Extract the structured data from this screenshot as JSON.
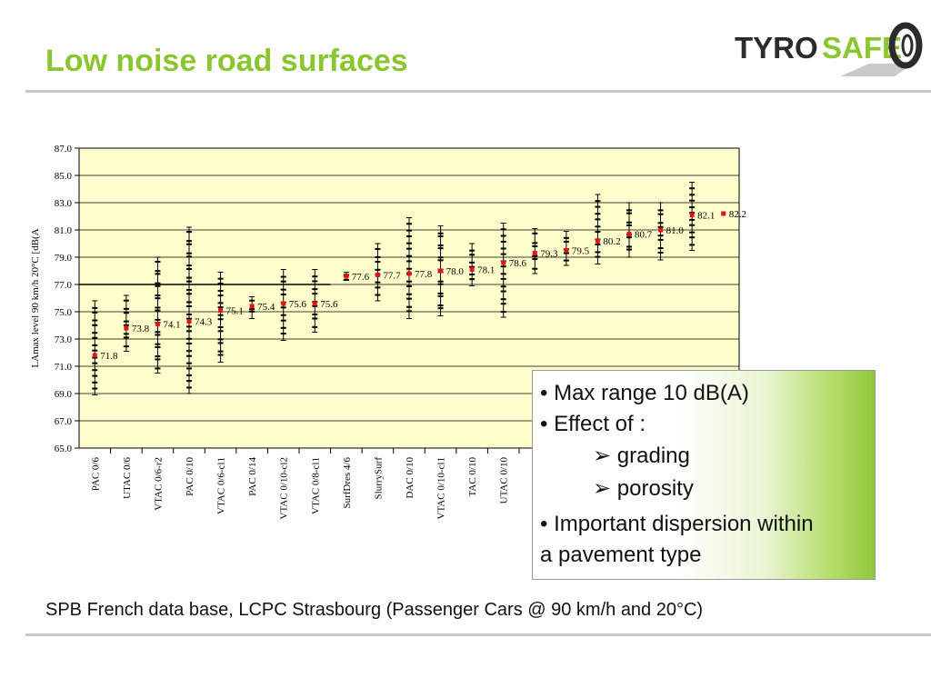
{
  "slide": {
    "title": "Low noise road surfaces",
    "caption": "SPB French data base, LCPC Strasbourg (Passenger Cars @ 90 km/h and 20°C)"
  },
  "logo": {
    "part1": "TYRO",
    "part2": "SAFE",
    "color1": "#2b2b2b",
    "color2": "#8ac630"
  },
  "bullets": {
    "b1": "• Max range 10 dB(A)",
    "b2": "• Effect of :",
    "sub1": "grading",
    "sub2": "porosity",
    "b3a": "• Important dispersion within",
    "b3b": "a pavement type",
    "arrow": "➢"
  },
  "chart_data": {
    "type": "scatter",
    "ylabel": "LAmax level 90 km/h 20°C [dB(A",
    "ylim": [
      65,
      87
    ],
    "yticks": [
      "65.0",
      "67.0",
      "69.0",
      "71.0",
      "73.0",
      "75.0",
      "77.0",
      "79.0",
      "81.0",
      "83.0",
      "85.0",
      "87.0"
    ],
    "categories": [
      "PAC 0/6",
      "UTAC 0/6",
      "VTAC 0/6-r2",
      "PAC 0/10",
      "VTAC 0/6-cl1",
      "PAC 0/14",
      "VTAC 0/10-cl2",
      "VTAC 0/8-cl1",
      "SurfDres 4/6",
      "SlurrySurf",
      "DAC 0/10",
      "VTAC 0/10-cl1",
      "TAC 0/10",
      "UTAC 0/10",
      "",
      "",
      "",
      "",
      "",
      "",
      ""
    ],
    "means": [
      71.8,
      73.8,
      74.1,
      74.3,
      75.1,
      75.4,
      75.6,
      75.6,
      77.6,
      77.7,
      77.8,
      78.0,
      78.1,
      78.6,
      79.3,
      79.5,
      80.2,
      80.7,
      81.0,
      82.1,
      82.2
    ],
    "mean_labels": [
      "71.8",
      "73.8",
      "74.1",
      "74.3",
      "75.1",
      "75.4",
      "75.6",
      "75.6",
      "77.6",
      "77.7",
      "77.8",
      "78.0",
      "78.1",
      "78.6",
      "79.3",
      "79.5",
      "80.2",
      "80.7",
      "81.0",
      "82.1",
      "82.2"
    ],
    "ranges": [
      [
        68.9,
        75.8
      ],
      [
        72.1,
        76.2
      ],
      [
        70.5,
        79.0
      ],
      [
        69.0,
        81.2
      ],
      [
        71.3,
        77.9
      ],
      [
        74.5,
        76.1
      ],
      [
        72.9,
        78.1
      ],
      [
        73.5,
        78.1
      ],
      [
        77.3,
        77.9
      ],
      [
        75.8,
        80.0
      ],
      [
        74.5,
        81.9
      ],
      [
        74.7,
        81.3
      ],
      [
        76.9,
        80.0
      ],
      [
        74.6,
        81.5
      ],
      [
        77.8,
        81.1
      ],
      [
        78.4,
        80.9
      ],
      [
        78.5,
        83.6
      ],
      [
        79.0,
        83.0
      ],
      [
        78.8,
        83.0
      ],
      [
        79.5,
        84.5
      ],
      [
        82.2,
        82.2
      ]
    ],
    "reference_line": 77.0,
    "colors": {
      "plot_bg": "#ffffcc",
      "mean_marker": "#e8101a",
      "points": "#000000",
      "grid": "#000000"
    },
    "grid": true
  }
}
